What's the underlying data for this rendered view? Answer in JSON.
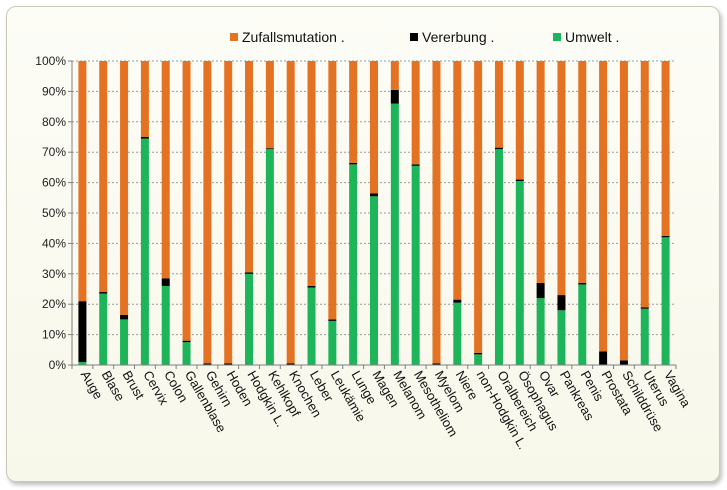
{
  "chart_data": {
    "type": "bar",
    "stacked": true,
    "stacking": "percent",
    "categories": [
      "Auge",
      "Blase",
      "Brust",
      "Cervix",
      "Colon",
      "Gallenblase",
      "Gehirn",
      "Hoden",
      "Hodgkin L.",
      "Kehlkopf",
      "Knochen",
      "Leber",
      "Leukämie",
      "Lunge",
      "Magen",
      "Melanom",
      "Mesotheliom",
      "Myelom",
      "Niere",
      "non-Hodgkin L.",
      "Oralbereich",
      "Ösophagus",
      "Ovar",
      "Pankreas",
      "Penis",
      "Prostata",
      "Schilddrüse",
      "Uterus",
      "Vagina"
    ],
    "series": [
      {
        "name": "Umwelt",
        "color": "#1db45a",
        "values": [
          1,
          23.5,
          15,
          74.5,
          26,
          7.5,
          0,
          0,
          30,
          71,
          0,
          25.5,
          14.5,
          66,
          55.5,
          86,
          65.5,
          0,
          20.5,
          3.5,
          71,
          60.5,
          22,
          18,
          26.5,
          0,
          0,
          18.5,
          42
        ]
      },
      {
        "name": "Vererbung",
        "color": "#000000",
        "values": [
          20,
          0.5,
          1.5,
          0.5,
          2.5,
          0.5,
          0.5,
          0.5,
          0.5,
          0.3,
          0.5,
          0.5,
          0.5,
          0.5,
          1,
          4.5,
          0.5,
          0.5,
          1,
          0.5,
          0.5,
          0.5,
          5,
          5,
          0.5,
          4.5,
          1.5,
          0.5,
          0.5
        ]
      },
      {
        "name": "Zufallsmutation",
        "color": "#e37222",
        "values": [
          79,
          76,
          83.5,
          25,
          71.5,
          92,
          99.5,
          99.5,
          69.5,
          28.7,
          99.5,
          74,
          85,
          33.5,
          43.5,
          9.5,
          34,
          99.5,
          78.5,
          96,
          28.5,
          39,
          73,
          77,
          73,
          95.5,
          98.5,
          81,
          57.5
        ]
      }
    ],
    "legend": {
      "position": "top",
      "labels": [
        "Zufallsmutation .",
        "Vererbung .",
        "Umwelt ."
      ]
    },
    "yticks": [
      "0%",
      "10%",
      "20%",
      "30%",
      "40%",
      "50%",
      "60%",
      "70%",
      "80%",
      "90%",
      "100%"
    ],
    "ylim": [
      0,
      100
    ],
    "grid": true,
    "title": "",
    "xlabel": "",
    "ylabel": ""
  }
}
